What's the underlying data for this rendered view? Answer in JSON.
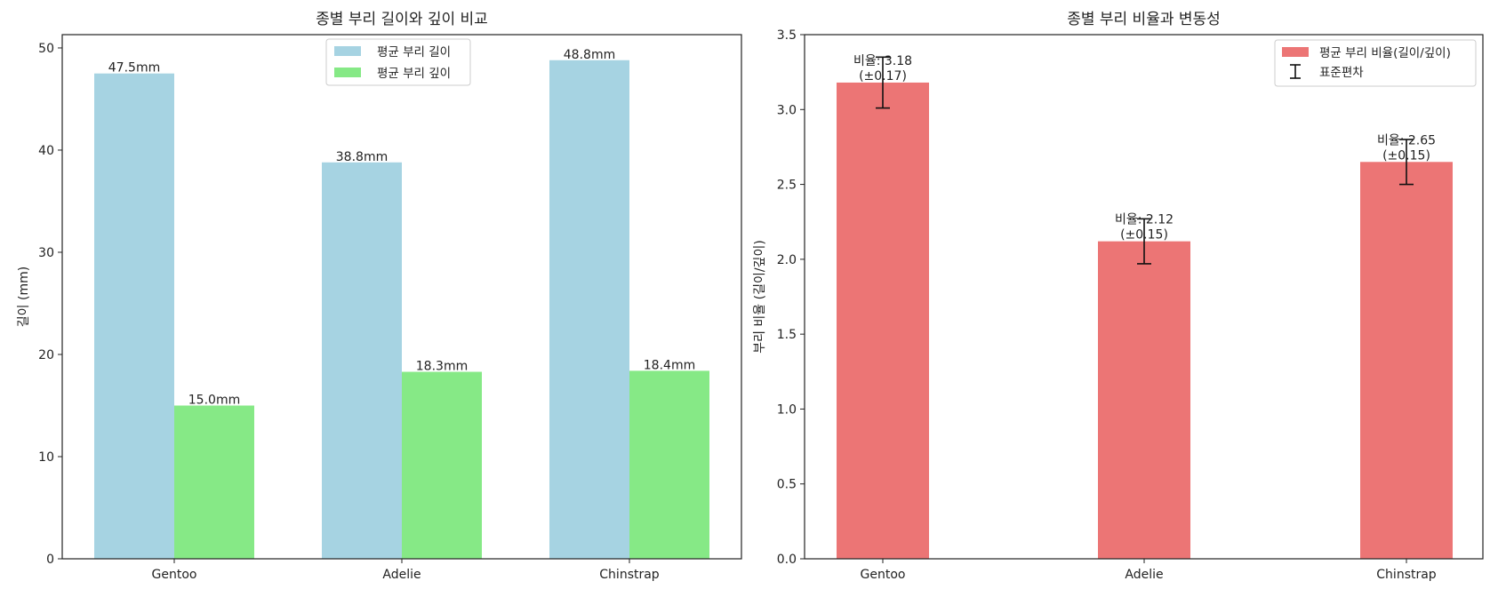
{
  "chart_data": [
    {
      "type": "bar",
      "title": "종별 부리 길이와 깊이 비교",
      "xlabel": "",
      "ylabel": "길이 (mm)",
      "categories": [
        "Gentoo",
        "Adelie",
        "Chinstrap"
      ],
      "ylim": [
        0,
        51.3
      ],
      "yticks": [
        0,
        10,
        20,
        30,
        40,
        50
      ],
      "grid": false,
      "legend_position": "top-center",
      "series": [
        {
          "name": "평균 부리 길이",
          "color": "#a6d3e2",
          "values": [
            47.5,
            38.8,
            48.8
          ],
          "labels": [
            "47.5mm",
            "38.8mm",
            "48.8mm"
          ]
        },
        {
          "name": "평균 부리 깊이",
          "color": "#86e986",
          "values": [
            15.0,
            18.3,
            18.4
          ],
          "labels": [
            "15.0mm",
            "18.3mm",
            "18.4mm"
          ]
        }
      ]
    },
    {
      "type": "bar",
      "title": "종별 부리 비율과 변동성",
      "xlabel": "",
      "ylabel": "부리 비율 (길이/깊이)",
      "categories": [
        "Gentoo",
        "Adelie",
        "Chinstrap"
      ],
      "ylim": [
        0,
        3.5
      ],
      "yticks": [
        0.0,
        0.5,
        1.0,
        1.5,
        2.0,
        2.5,
        3.0,
        3.5
      ],
      "grid": false,
      "legend_position": "top-right",
      "series": [
        {
          "name": "평균 부리 비율(길이/깊이)",
          "color": "#ec7575",
          "values": [
            3.18,
            2.12,
            2.65
          ],
          "errors": [
            0.17,
            0.15,
            0.15
          ],
          "label_lines": [
            [
              "비율: 3.18",
              "(±0.17)"
            ],
            [
              "비율: 2.12",
              "(±0.15)"
            ],
            [
              "비율: 2.65",
              "(±0.15)"
            ]
          ]
        }
      ],
      "errorbar_legend": "표준편차"
    }
  ]
}
